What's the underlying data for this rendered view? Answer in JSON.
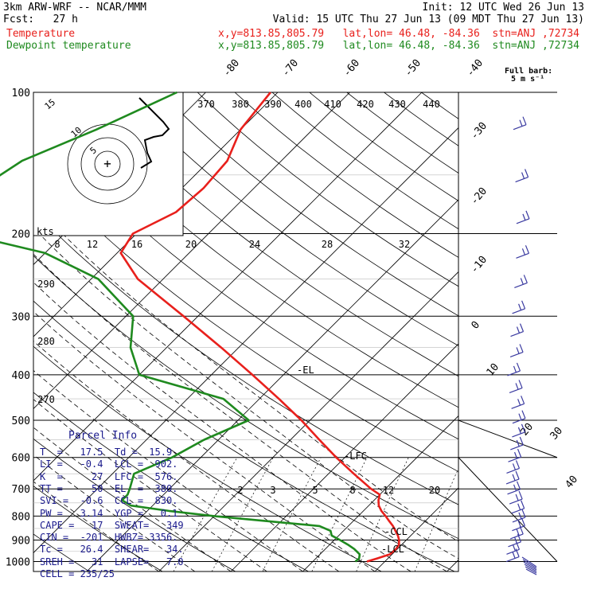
{
  "header": {
    "model": "3km ARW-WRF -- NCAR/MMM",
    "init": "Init: 12 UTC Wed 26 Jun 13",
    "fcst": "Fcst:   27 h",
    "valid": "Valid: 15 UTC Thu 27 Jun 13 (09 MDT Thu 27 Jun 13)",
    "temp_label": "Temperature",
    "temp_info": "x,y=813.85,805.79   lat,lon= 46.48, -84.36  stn=ANJ ,72734",
    "dew_label": "Dewpoint temperature",
    "dew_info": "x,y=813.85,805.79   lat,lon= 46.48, -84.36  stn=ANJ ,72734"
  },
  "wind_legend": {
    "line1": "Full barb:",
    "line2": "5 m s⁻¹"
  },
  "parcel_info": {
    "title": "Parcel Info",
    "rows": [
      "T  =   17.5  Td =  15.9",
      "LI =   -0.4  LCL =  902.",
      "K  =     27  LFC =  576.",
      "TT =     50  EL  =  380.",
      "SVI =  -0.6  CCL =  830.",
      "PW =   3.14  YGP =   0.1",
      "CAPE =   17  SWEAT=   349",
      "CIN =  -201  HWBZ= 3356.",
      "Tc =   26.4  SHEAR=   34.",
      "SREH =   31  LAPSE=   7.0",
      "CELL = 235/25"
    ]
  },
  "colors": {
    "temperature": "#e8201c",
    "dewpoint": "#1f8a1f",
    "wind": "#3a3aa0",
    "grid": "#000000"
  },
  "chart_data": {
    "type": "line",
    "title": "",
    "ylabel": "",
    "pressure_labels": [
      "100",
      "200",
      "300",
      "400",
      "500",
      "600",
      "700",
      "800",
      "900",
      "1000"
    ],
    "isotherm_labels": [
      "-80",
      "-70",
      "-60",
      "-50",
      "-40",
      "-30",
      "-20",
      "-10",
      "0",
      "10",
      "20",
      "30",
      "40"
    ],
    "theta_labels": [
      "370",
      "380",
      "390",
      "400",
      "410",
      "420",
      "430",
      "440"
    ],
    "theta_side_labels": [
      "290",
      "280",
      "270"
    ],
    "mixing_ratio_labels": [
      "2",
      "3",
      "5",
      "8",
      "12",
      "20"
    ],
    "hodo_speed_labels": [
      "8",
      "12",
      "16",
      "20",
      "24",
      "28",
      "32"
    ],
    "hodo_units": "kts",
    "level_annotations": [
      "-EL",
      "-LFC",
      "-CCL",
      "-LCL"
    ],
    "ring_labels": [
      "15",
      "10",
      "5"
    ],
    "series": [
      {
        "name": "Temperature",
        "pressure": [
          1000,
          985,
          965,
          940,
          920,
          900,
          880,
          860,
          840,
          820,
          800,
          780,
          760,
          740,
          720,
          700,
          650,
          600,
          550,
          500,
          450,
          400,
          350,
          300,
          250,
          220,
          200,
          180,
          160,
          140,
          120,
          100
        ],
        "values": [
          17.5,
          18.5,
          19.7,
          19.8,
          19.6,
          19.0,
          18.2,
          17.2,
          16.2,
          15.0,
          13.8,
          12.5,
          11.4,
          10.6,
          10.0,
          8.0,
          3.5,
          -1.2,
          -6.0,
          -11.2,
          -17.3,
          -24.3,
          -32.4,
          -42.0,
          -53.5,
          -59.5,
          -60.5,
          -57.5,
          -57.0,
          -57.5,
          -60.0,
          -61.0
        ]
      },
      {
        "name": "Dewpoint temperature",
        "pressure": [
          1000,
          985,
          965,
          940,
          920,
          900,
          880,
          860,
          840,
          820,
          800,
          780,
          760,
          740,
          720,
          700,
          650,
          600,
          550,
          500,
          450,
          400,
          350,
          300,
          250,
          220,
          200,
          180,
          160,
          140,
          120,
          100
        ],
        "values": [
          15.9,
          16.0,
          15.5,
          14.0,
          12.5,
          10.8,
          9.0,
          8.2,
          6.0,
          -2.0,
          -10.0,
          -17.0,
          -23.0,
          -25.0,
          -25.0,
          -25.5,
          -27.0,
          -24.0,
          -22.0,
          -18.5,
          -25.0,
          -40.0,
          -45.0,
          -49.0,
          -59.0,
          -70.0,
          -84.0,
          -90.0,
          -88.0,
          -86.0,
          -80.0,
          -74.0
        ]
      }
    ],
    "hodograph": [
      [
        0,
        6
      ],
      [
        1,
        9
      ],
      [
        -3,
        10
      ],
      [
        -4,
        8
      ],
      [
        -3,
        5
      ],
      [
        -1,
        4
      ],
      [
        3,
        3
      ],
      [
        6,
        1
      ],
      [
        8,
        1
      ],
      [
        9,
        5
      ],
      [
        7,
        12
      ],
      [
        2,
        18
      ]
    ],
    "wind_barbs_count": 26
  }
}
